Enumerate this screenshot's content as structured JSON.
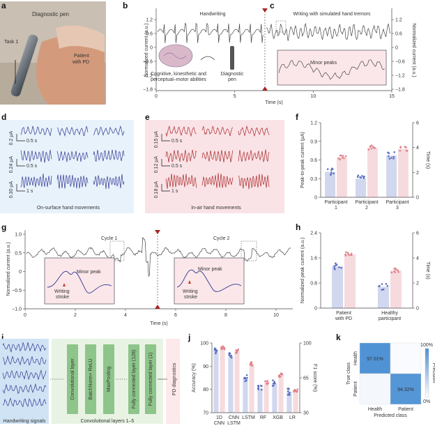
{
  "panels": {
    "a": {
      "label": "a",
      "text_pen": "Diagnostic pen",
      "text_task": "Task 1",
      "text_patient": "Patient",
      "text_patient2": "with PD"
    },
    "b": {
      "label": "b",
      "title": "Handwriting",
      "caption1": "Cognitive, kinesthetic and",
      "caption2": "perceptual–motor abilities",
      "pen1": "Diagnostic",
      "pen2": "pen"
    },
    "c": {
      "label": "c",
      "title": "Writing with simulated hand tremors",
      "inset_label": "Minor peaks"
    },
    "bc_axes": {
      "ylabel_left": "Normalized current (a.u.)",
      "ylabel_right": "Normalized current (a.u.)",
      "xlabel": "Time (s)",
      "yticks": [
        "1.2",
        "0.6",
        "0",
        "−0.6",
        "−1.2",
        "−1.8"
      ],
      "xticks": [
        "0",
        "5",
        "10",
        "15"
      ]
    },
    "d": {
      "label": "d",
      "scales": [
        "0.2 μA",
        "0.24 μA",
        "0.30 μA"
      ],
      "times": [
        "0.5 s",
        "0.5 s",
        "1 s"
      ],
      "caption": "On-surface hand movements"
    },
    "e": {
      "label": "e",
      "scales": [
        "0.15 μA",
        "0.12 μA",
        "0.18 μA"
      ],
      "times": [
        "0.5 s",
        "0.5 s",
        "1 s"
      ],
      "caption": "In-air hand movements"
    },
    "f": {
      "label": "f"
    },
    "g": {
      "label": "g",
      "cycle1": "Cycle 1",
      "cycle2": "Cycle 2",
      "minor_peak": "Minor peak",
      "writing": "Writing",
      "stroke": "stroke",
      "ylabel": "Normalized current (a.u.)",
      "xlabel": "Time (s)",
      "yticks": [
        "1.0",
        "0.5",
        "0",
        "−0.5",
        "−1.0"
      ],
      "xticks": [
        "0",
        "2",
        "4",
        "6",
        "8",
        "10"
      ]
    },
    "h": {
      "label": "h"
    },
    "i": {
      "label": "i",
      "signals": "Handwriting signals",
      "conv_layers": "Convolutional layers 1–5",
      "blocks": [
        "Convolutional layer",
        "BatchNorm+ ReLU",
        "MaxPooling",
        "Fully connected layer (128)",
        "Fully connected layer (1)",
        "PD diagnostics"
      ]
    },
    "j": {
      "label": "j"
    },
    "k": {
      "label": "k"
    }
  },
  "chart_data": [
    {
      "panel": "f",
      "type": "bar",
      "categories": [
        "Participant 1",
        "Participant 2",
        "Participant 3"
      ],
      "ylabel": "Peak-to-peak current (μA)",
      "ylabel_right": "Time (s)",
      "ylim": [
        0,
        1.2
      ],
      "ylim_right": [
        0,
        6
      ],
      "yticks": [
        "0",
        "0.3",
        "0.6",
        "0.9",
        "1.2"
      ],
      "yticks_right": [
        "0",
        "2",
        "4",
        "6"
      ],
      "series": [
        {
          "name": "Peak-to-peak current",
          "axis": "left",
          "color": "#5a6fc2",
          "values": [
            0.41,
            0.3,
            0.67
          ]
        },
        {
          "name": "Time",
          "axis": "right",
          "color": "#e07f88",
          "values": [
            3.2,
            4.0,
            3.9
          ]
        }
      ]
    },
    {
      "panel": "h",
      "type": "bar",
      "categories": [
        "Patient with PD",
        "Healthy participant"
      ],
      "ylabel": "Normalized peak current (a.u.)",
      "ylabel_right": "Time (s)",
      "ylim": [
        0,
        2.4
      ],
      "ylim_right": [
        0,
        6
      ],
      "yticks": [
        "0",
        "0.8",
        "1.6",
        "2.4"
      ],
      "yticks_right": [
        "0",
        "2",
        "4",
        "6"
      ],
      "series": [
        {
          "name": "Normalized peak current",
          "axis": "left",
          "color": "#5a6fc2",
          "values": [
            1.33,
            0.68
          ]
        },
        {
          "name": "Time",
          "axis": "right",
          "color": "#e07f88",
          "values": [
            4.3,
            3.0
          ]
        }
      ]
    },
    {
      "panel": "j",
      "type": "bar",
      "categories": [
        "1D CNN",
        "CNN LSTM",
        "LSTM",
        "RF",
        "XGB",
        "LR"
      ],
      "ylabel": "Accuracy (%)",
      "ylabel_right": "F1 score (%)",
      "ylim": [
        70,
        100
      ],
      "ylim_right": [
        30,
        100
      ],
      "yticks": [
        "70",
        "80",
        "90",
        "100"
      ],
      "yticks_right": [
        "30",
        "65",
        "100"
      ],
      "series": [
        {
          "name": "Accuracy",
          "axis": "left",
          "color": "#5a6fc2",
          "values": [
            96.5,
            94.5,
            85.0,
            80.5,
            82.5,
            79.0
          ]
        },
        {
          "name": "F1 score",
          "axis": "right",
          "color": "#e07f88",
          "values": [
            95.0,
            92.0,
            79.0,
            60.0,
            68.0,
            53.0
          ]
        }
      ]
    },
    {
      "panel": "k",
      "type": "heatmap",
      "rows": [
        "Health",
        "Patient"
      ],
      "cols": [
        "Health",
        "Patient"
      ],
      "ylabel": "True class",
      "xlabel": "Predicted class",
      "colorbar_label": "Precision",
      "colorbar_ticks": [
        "100%",
        "0%"
      ],
      "values": [
        [
          97.01,
          2.99
        ],
        [
          5.68,
          94.32
        ]
      ],
      "labels": [
        [
          "97.01%",
          ""
        ],
        [
          "",
          "94.32%"
        ]
      ]
    }
  ]
}
